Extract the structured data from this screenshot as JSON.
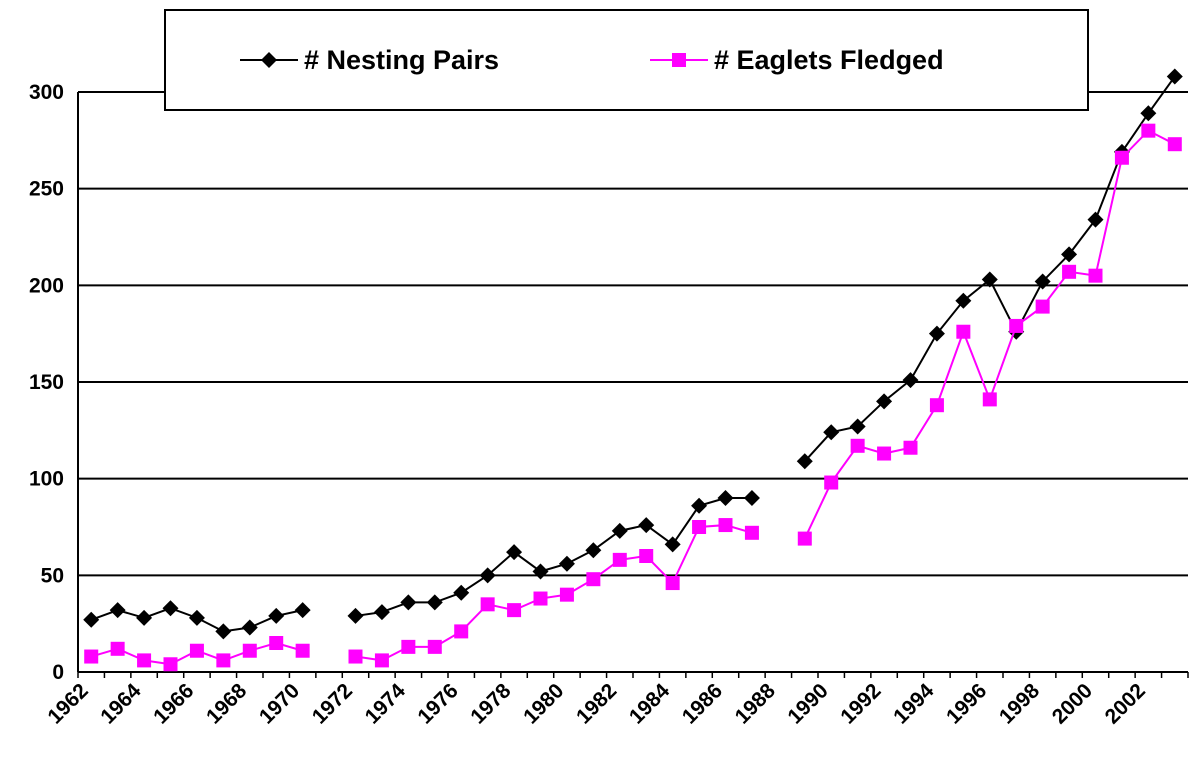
{
  "chart_data": {
    "type": "line",
    "categories": [
      "1962",
      null,
      "1964",
      null,
      "1966",
      null,
      "1968",
      null,
      "1970",
      null,
      "1972",
      null,
      "1974",
      null,
      "1976",
      null,
      "1978",
      null,
      "1980",
      null,
      "1982",
      null,
      "1984",
      null,
      "1986",
      null,
      "1988",
      null,
      "1990",
      null,
      "1992",
      null,
      "1994",
      null,
      "1996",
      null,
      "1998",
      null,
      "2000",
      null,
      "2002",
      null
    ],
    "series": [
      {
        "name": "# Nesting Pairs",
        "color": "#000000",
        "marker": "diamond",
        "values": [
          27,
          32,
          28,
          33,
          28,
          21,
          23,
          29,
          32,
          null,
          29,
          31,
          36,
          36,
          41,
          50,
          62,
          52,
          56,
          63,
          73,
          76,
          66,
          86,
          90,
          90,
          null,
          109,
          124,
          127,
          140,
          151,
          175,
          192,
          203,
          176,
          202,
          216,
          234,
          269,
          289,
          308
        ]
      },
      {
        "name": "# Eaglets Fledged",
        "color": "#ff00ff",
        "marker": "square",
        "values": [
          8,
          12,
          6,
          4,
          11,
          6,
          11,
          15,
          11,
          null,
          8,
          6,
          13,
          13,
          21,
          35,
          32,
          38,
          40,
          48,
          58,
          60,
          46,
          75,
          76,
          72,
          null,
          69,
          98,
          117,
          113,
          116,
          138,
          176,
          141,
          179,
          189,
          207,
          205,
          266,
          280,
          273
        ]
      }
    ],
    "ylim": [
      0,
      300
    ],
    "yticks": [
      0,
      50,
      100,
      150,
      200,
      250,
      300
    ],
    "grid": true,
    "legend": "top"
  }
}
